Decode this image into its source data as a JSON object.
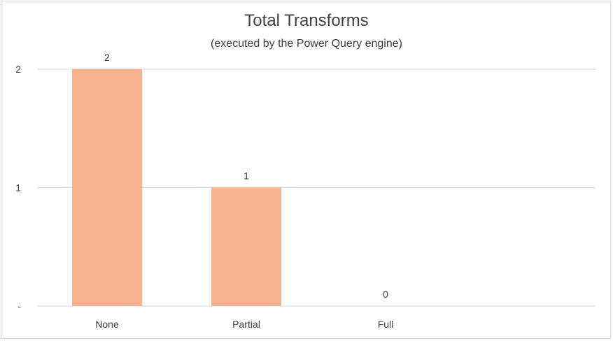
{
  "chart_data": {
    "type": "bar",
    "title": "Total Transforms",
    "subtitle": "(executed by the Power Query engine)",
    "categories": [
      "None",
      "Partial",
      "Full"
    ],
    "values": [
      2,
      1,
      0
    ],
    "data_labels": [
      "2",
      "1",
      "0"
    ],
    "y_ticks": [
      {
        "value": 0,
        "label": "-"
      },
      {
        "value": 1,
        "label": "1"
      },
      {
        "value": 2,
        "label": "2"
      }
    ],
    "ylim": [
      0,
      2
    ],
    "xlabel": "",
    "ylabel": "",
    "grid": true,
    "legend": "none",
    "bar_color": "#f8b28f",
    "grid_color": "#d9d9d9",
    "text_color": "#404040"
  }
}
